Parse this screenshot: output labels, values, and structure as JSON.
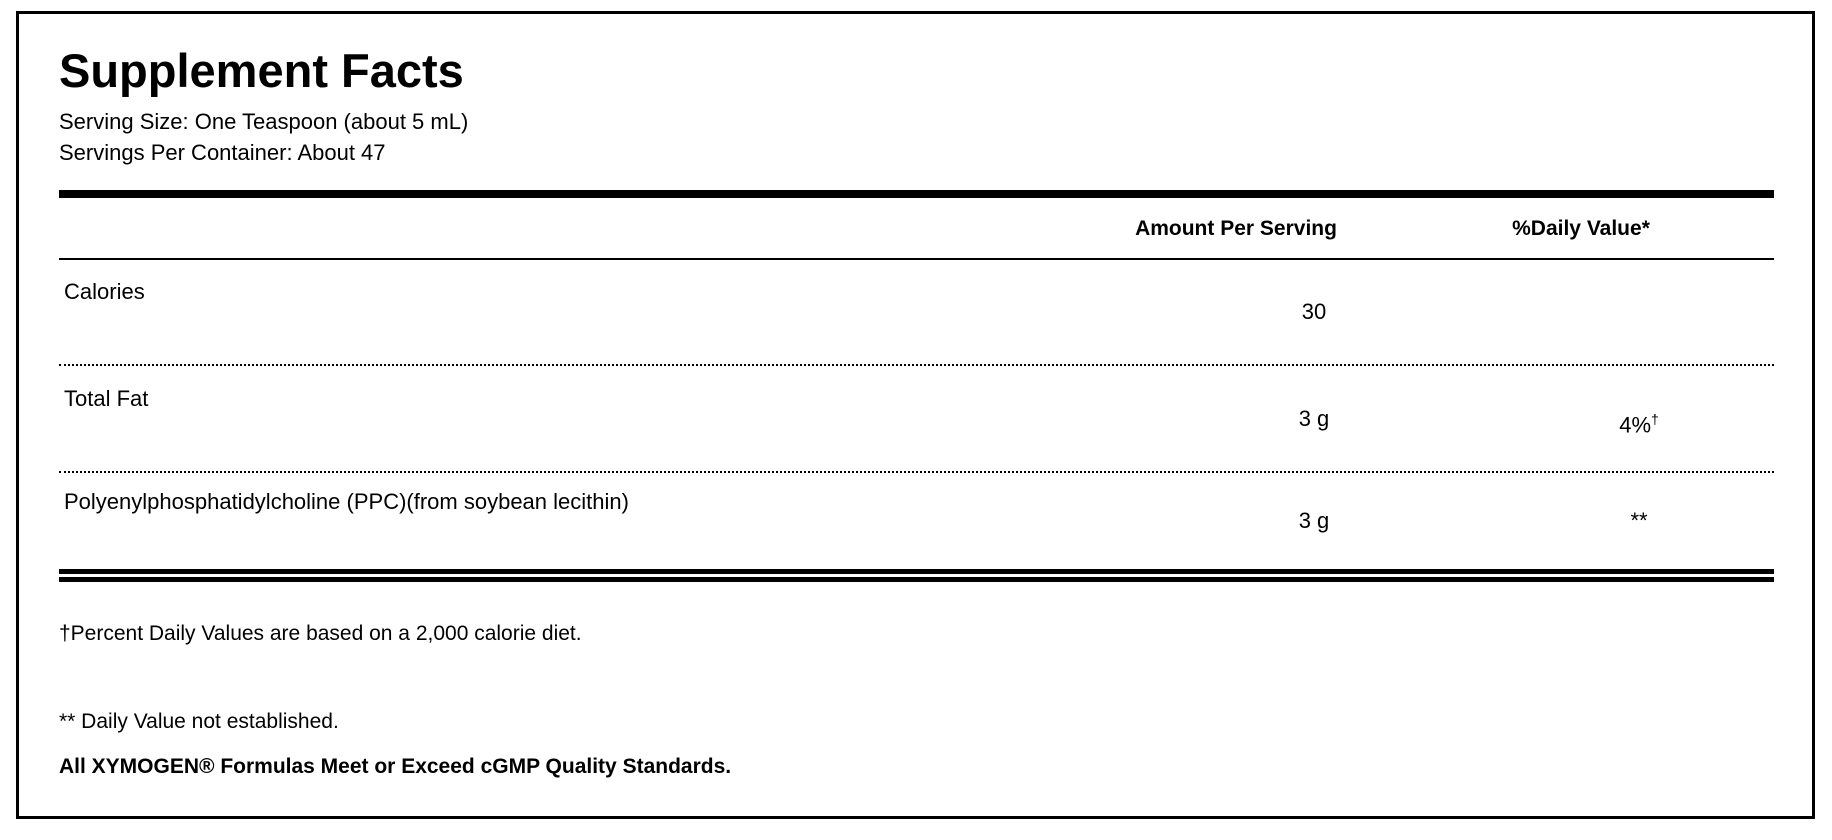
{
  "title": "Supplement Facts",
  "serving_size": "Serving Size: One Teaspoon (about 5 mL)",
  "servings_per_container": "Servings Per Container: About 47",
  "columns": {
    "amount": "Amount Per Serving",
    "daily_value": "%Daily Value*"
  },
  "rows": [
    {
      "name": "Calories",
      "amount": "30",
      "dv": "",
      "dv_mark": ""
    },
    {
      "name": "Total Fat",
      "amount": "3 g",
      "dv": "4%",
      "dv_mark": "†"
    },
    {
      "name": "Polyenylphosphatidylcholine (PPC)(from soybean lecithin)",
      "amount": "3 g",
      "dv": "**",
      "dv_mark": ""
    }
  ],
  "footnotes": {
    "dagger": "†Percent Daily Values are based on a 2,000 calorie diet.",
    "double_star": "** Daily Value not established.",
    "quality": "All XYMOGEN® Formulas Meet or Exceed cGMP Quality Standards."
  }
}
